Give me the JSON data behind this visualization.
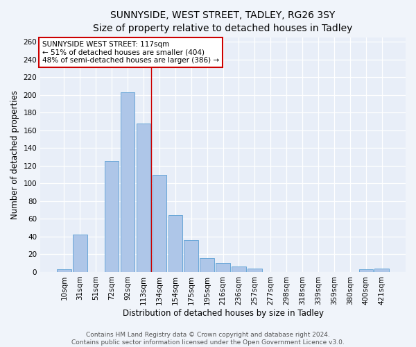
{
  "title": "SUNNYSIDE, WEST STREET, TADLEY, RG26 3SY",
  "subtitle": "Size of property relative to detached houses in Tadley",
  "xlabel": "Distribution of detached houses by size in Tadley",
  "ylabel": "Number of detached properties",
  "bar_labels": [
    "10sqm",
    "31sqm",
    "51sqm",
    "72sqm",
    "92sqm",
    "113sqm",
    "134sqm",
    "154sqm",
    "175sqm",
    "195sqm",
    "216sqm",
    "236sqm",
    "257sqm",
    "277sqm",
    "298sqm",
    "318sqm",
    "339sqm",
    "359sqm",
    "380sqm",
    "400sqm",
    "421sqm"
  ],
  "bar_values": [
    3,
    42,
    0,
    125,
    203,
    168,
    110,
    64,
    36,
    16,
    10,
    6,
    4,
    0,
    0,
    0,
    0,
    0,
    0,
    3,
    4
  ],
  "bar_color": "#aec6e8",
  "bar_edge_color": "#5a9fd4",
  "vline_x": 5.5,
  "vline_color": "#cc0000",
  "ylim": [
    0,
    265
  ],
  "yticks": [
    0,
    20,
    40,
    60,
    80,
    100,
    120,
    140,
    160,
    180,
    200,
    220,
    240,
    260
  ],
  "annotation_box_text": "SUNNYSIDE WEST STREET: 117sqm\n← 51% of detached houses are smaller (404)\n48% of semi-detached houses are larger (386) →",
  "annotation_box_color": "#cc0000",
  "bg_color": "#f0f4fa",
  "plot_bg_color": "#e8eef8",
  "footer_line1": "Contains HM Land Registry data © Crown copyright and database right 2024.",
  "footer_line2": "Contains public sector information licensed under the Open Government Licence v3.0.",
  "title_fontsize": 10,
  "axis_label_fontsize": 8.5,
  "tick_fontsize": 7.5,
  "annotation_fontsize": 7.5,
  "footer_fontsize": 6.5
}
